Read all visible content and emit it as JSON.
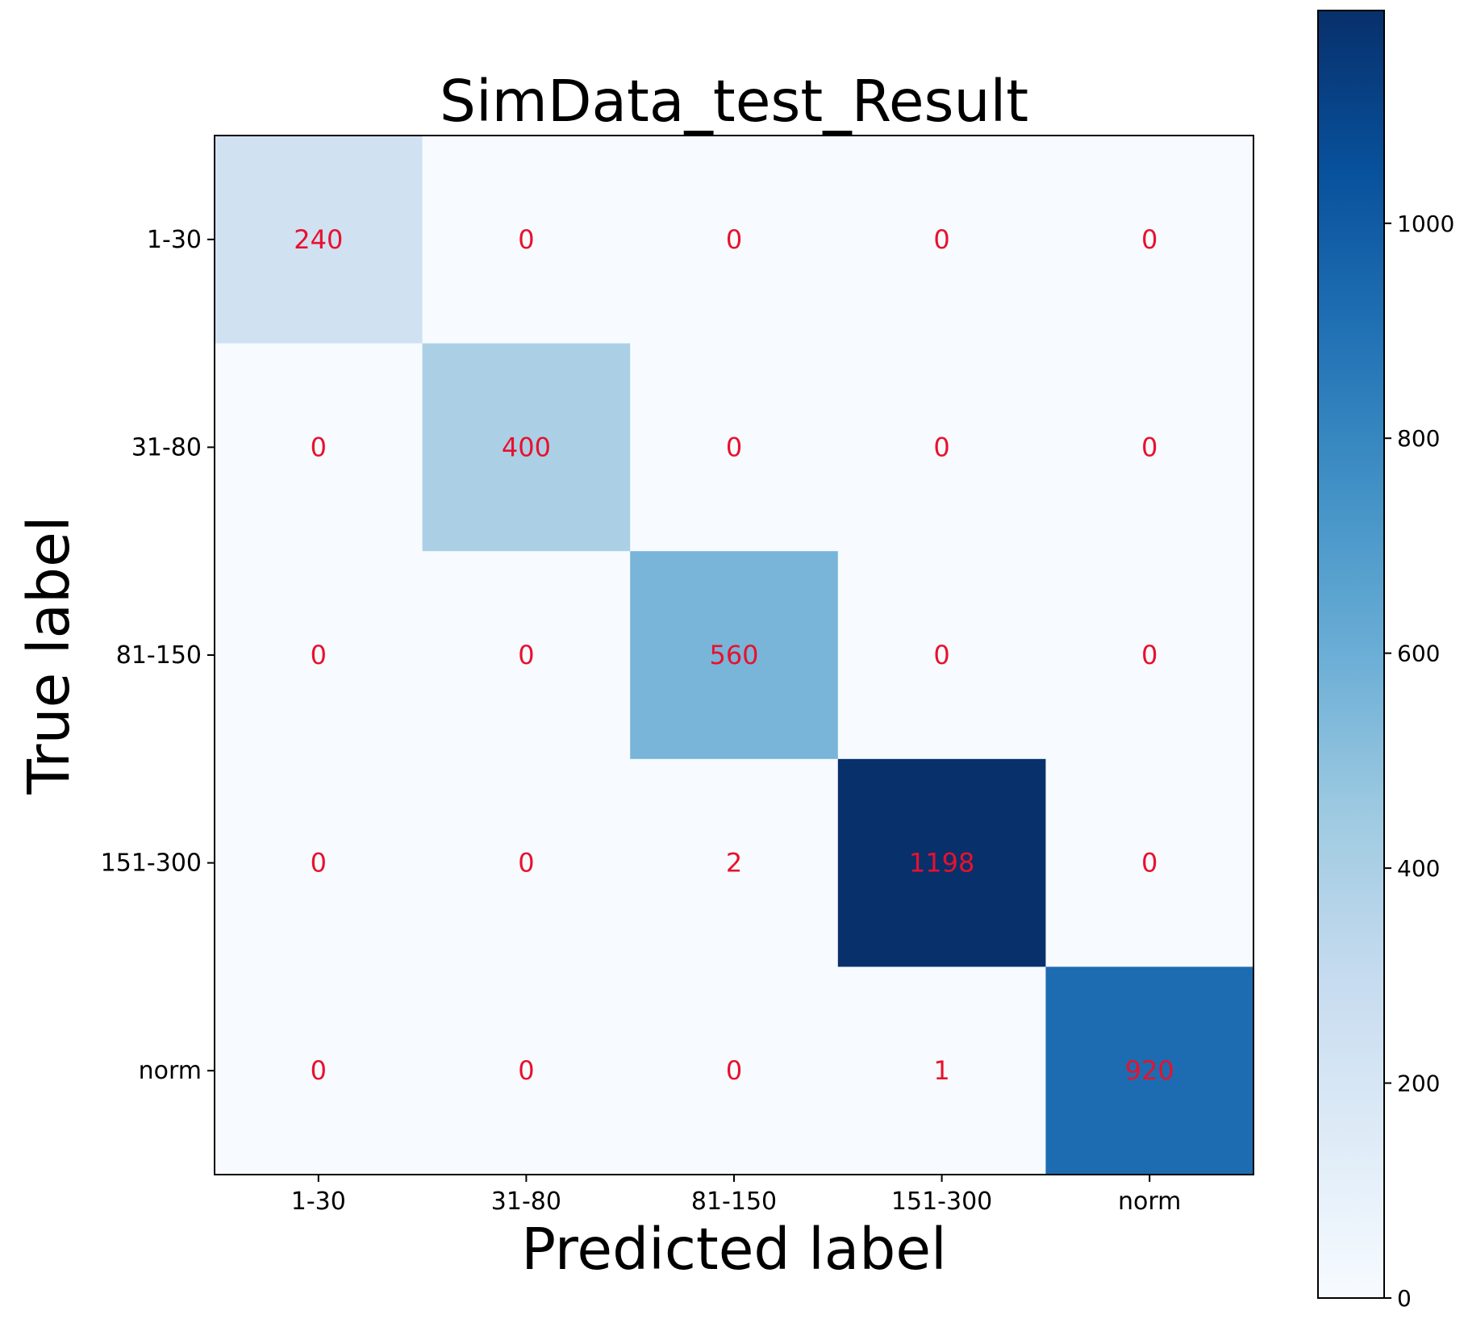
{
  "chart_data": {
    "type": "heatmap",
    "title": "SimData_test_Result",
    "xlabel": "Predicted label",
    "ylabel": "True label",
    "x_categories": [
      "1-30",
      "31-80",
      "81-150",
      "151-300",
      "norm"
    ],
    "y_categories": [
      "1-30",
      "31-80",
      "81-150",
      "151-300",
      "norm"
    ],
    "matrix": [
      [
        240,
        0,
        0,
        0,
        0
      ],
      [
        0,
        400,
        0,
        0,
        0
      ],
      [
        0,
        0,
        560,
        0,
        0
      ],
      [
        0,
        0,
        2,
        1198,
        0
      ],
      [
        0,
        0,
        0,
        1,
        920
      ]
    ],
    "colormap": "Blues",
    "value_text_color": "#e8112d",
    "colorbar": {
      "range": [
        0,
        1198
      ],
      "ticks": [
        0,
        200,
        400,
        600,
        800,
        1000
      ]
    }
  }
}
